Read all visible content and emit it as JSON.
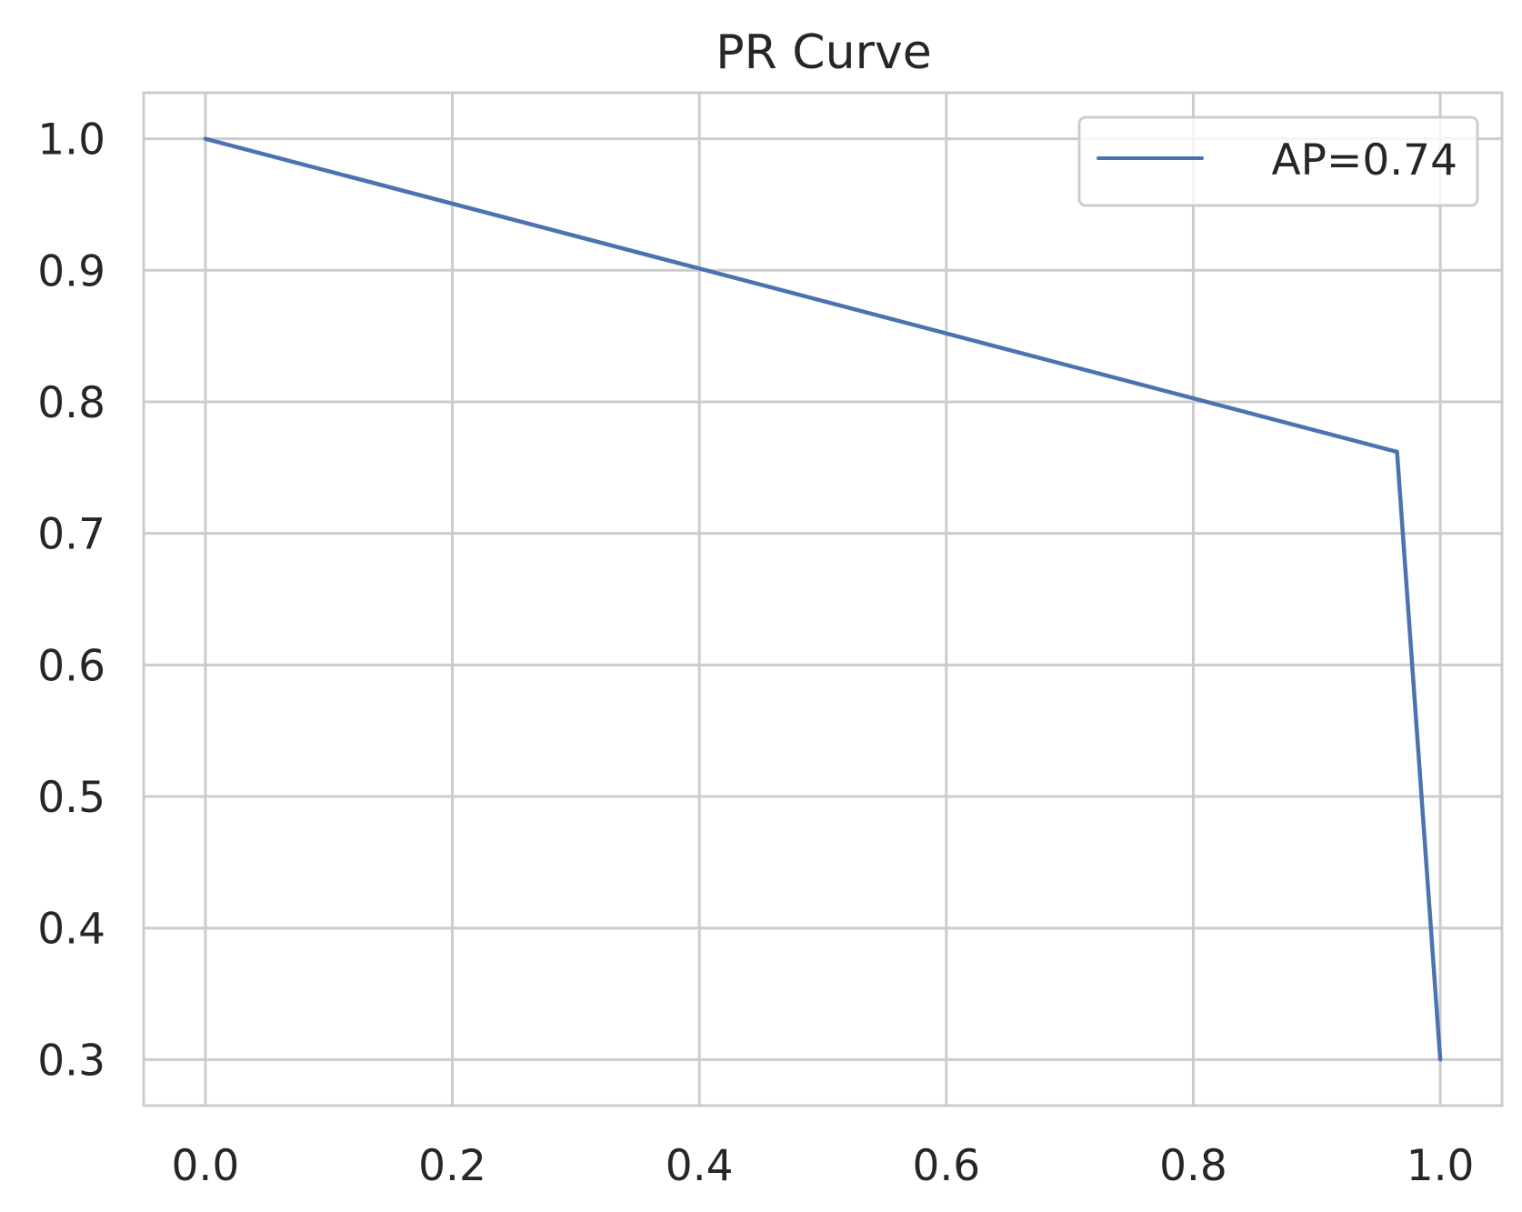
{
  "chart_data": {
    "type": "line",
    "title": "PR Curve",
    "xlabel": "",
    "ylabel": "",
    "xlim": [
      -0.05,
      1.05
    ],
    "ylim": [
      0.265,
      1.035
    ],
    "xticks": [
      0.0,
      0.2,
      0.4,
      0.6,
      0.8,
      1.0
    ],
    "xtick_labels": [
      "0.0",
      "0.2",
      "0.4",
      "0.6",
      "0.8",
      "1.0"
    ],
    "yticks": [
      0.3,
      0.4,
      0.5,
      0.6,
      0.7,
      0.8,
      0.9,
      1.0
    ],
    "ytick_labels": [
      "0.3",
      "0.4",
      "0.5",
      "0.6",
      "0.7",
      "0.8",
      "0.9",
      "1.0"
    ],
    "grid": true,
    "legend_position": "top-right",
    "series": [
      {
        "name": "AP=0.74",
        "color": "#4c72b0",
        "x": [
          0.0,
          0.965,
          1.0
        ],
        "y": [
          1.0,
          0.762,
          0.3
        ]
      }
    ],
    "colors": {
      "grid": "#cccccc",
      "spine": "#cccccc",
      "text": "#262626",
      "background": "#ffffff"
    }
  }
}
